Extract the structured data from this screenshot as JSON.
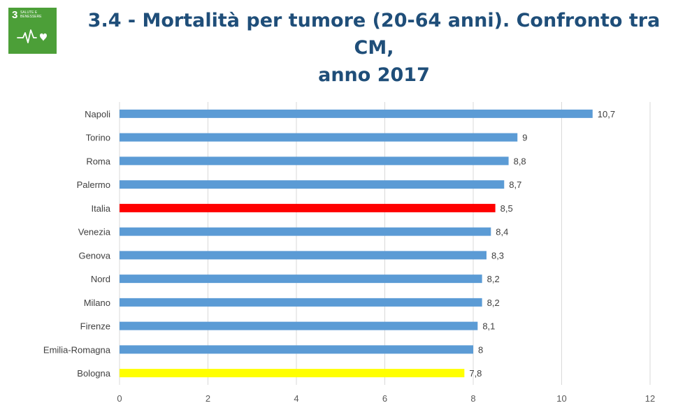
{
  "page": {
    "title": "3.4 - Mortalità per tumore (20-64 anni). Confronto tra CM, anno 2017",
    "title_line1": "3.4 - Mortalità per tumore (20-64 anni). Confronto tra CM,",
    "title_line2": "anno 2017",
    "sdg_badge": {
      "number": "3",
      "label": "SALUTE E BENESSERE",
      "icon": "heartbeat-icon",
      "color": "#4c9f38"
    }
  },
  "chart_data": {
    "type": "bar",
    "orientation": "horizontal",
    "title": "",
    "xlabel": "",
    "ylabel": "",
    "categories": [
      "Napoli",
      "Torino",
      "Roma",
      "Palermo",
      "Italia",
      "Venezia",
      "Genova",
      "Nord",
      "Milano",
      "Firenze",
      "Emilia-Romagna",
      "Bologna"
    ],
    "values": [
      10.7,
      9,
      8.8,
      8.7,
      8.5,
      8.4,
      8.3,
      8.2,
      8.2,
      8.1,
      8,
      7.8
    ],
    "value_labels": [
      "10,7",
      "9",
      "8,8",
      "8,7",
      "8,5",
      "8,4",
      "8,3",
      "8,2",
      "8,2",
      "8,1",
      "8",
      "7,8"
    ],
    "colors": [
      "#5b9bd5",
      "#5b9bd5",
      "#5b9bd5",
      "#5b9bd5",
      "#ff0000",
      "#5b9bd5",
      "#5b9bd5",
      "#5b9bd5",
      "#5b9bd5",
      "#5b9bd5",
      "#5b9bd5",
      "#ffff00"
    ],
    "xlim": [
      0,
      12
    ],
    "xticks": [
      0,
      2,
      4,
      6,
      8,
      10,
      12
    ],
    "grid": true,
    "legend": "none"
  }
}
